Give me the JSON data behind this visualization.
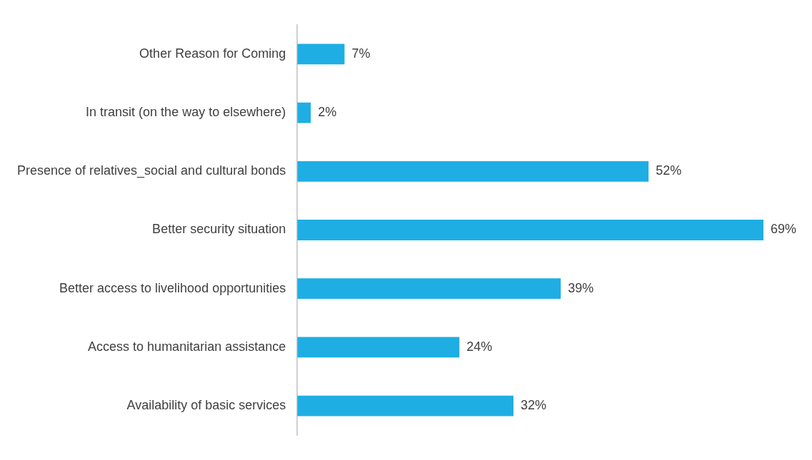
{
  "chart_data": {
    "type": "bar",
    "orientation": "horizontal",
    "categories": [
      "Other Reason for Coming",
      "In transit (on the way to elsewhere)",
      "Presence of relatives_social and cultural bonds",
      "Better security situation",
      "Better access to livelihood opportunities",
      "Access to humanitarian assistance",
      "Availability of basic services"
    ],
    "values": [
      7,
      2,
      52,
      69,
      39,
      24,
      32
    ],
    "value_labels": [
      "7%",
      "2%",
      "52%",
      "69%",
      "39%",
      "24%",
      "32%"
    ],
    "color": "#1eaee4",
    "xlim": [
      0,
      69
    ],
    "grid": false,
    "legend": false,
    "tick_labels": "y"
  }
}
